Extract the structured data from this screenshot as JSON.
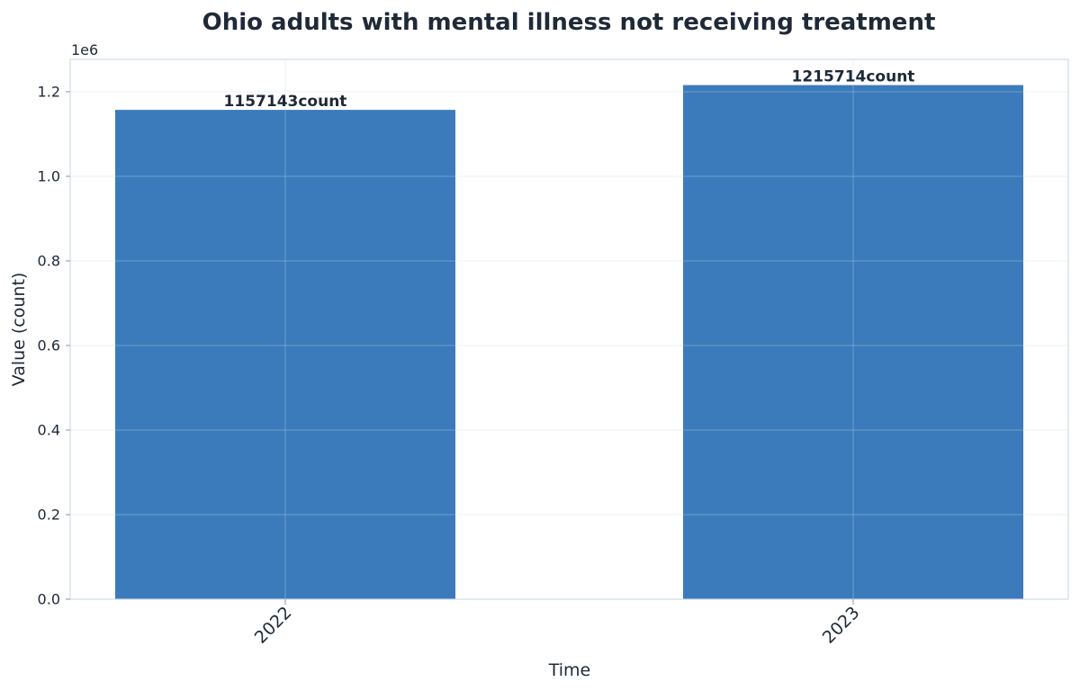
{
  "chart_data": {
    "type": "bar",
    "title": "Ohio adults with mental illness not receiving treatment",
    "xlabel": "Time",
    "ylabel": "Value (count)",
    "y_offset_label": "1e6",
    "categories": [
      "2022",
      "2023"
    ],
    "values": [
      1157143,
      1215714
    ],
    "data_labels": [
      "1157143count",
      "1215714count"
    ],
    "y_ticks": [
      0.0,
      0.2,
      0.4,
      0.6,
      0.8,
      1.0,
      1.2
    ],
    "y_tick_labels": [
      "0.0",
      "0.2",
      "0.4",
      "0.6",
      "0.8",
      "1.0",
      "1.2"
    ],
    "y_scale": 1000000,
    "ylim": [
      0,
      1276500
    ],
    "grid": true,
    "legend": "none",
    "colors": {
      "bar": "#3b7bbb",
      "grid": "#e5ecf2",
      "axis": "#d0dbe5",
      "text": "#1f2937"
    }
  }
}
